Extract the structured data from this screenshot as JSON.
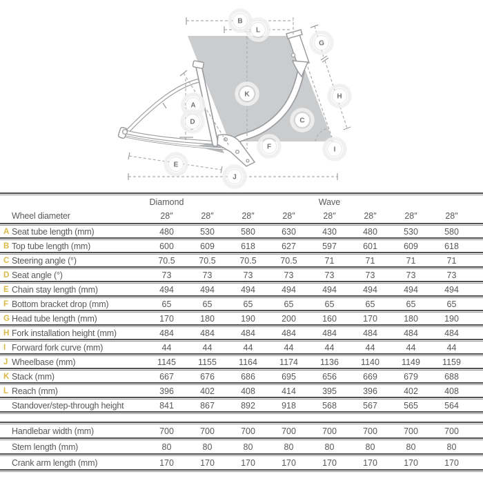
{
  "diagram": {
    "markers": [
      "A",
      "B",
      "C",
      "D",
      "E",
      "F",
      "G",
      "H",
      "I",
      "J",
      "K",
      "L"
    ]
  },
  "table": {
    "group_header": [
      "Diamond",
      "",
      "",
      "",
      "Wave",
      "",
      "",
      ""
    ],
    "wheel_row": {
      "letter": "",
      "label": "Wheel diameter",
      "values": [
        "28″",
        "28″",
        "28″",
        "28″",
        "28″",
        "28″",
        "28″",
        "28″"
      ]
    },
    "geometry_rows": [
      {
        "letter": "A",
        "label": "Seat tube length (mm)",
        "values": [
          "480",
          "530",
          "580",
          "630",
          "430",
          "480",
          "530",
          "580"
        ]
      },
      {
        "letter": "B",
        "label": "Top tube length (mm)",
        "values": [
          "600",
          "609",
          "618",
          "627",
          "597",
          "601",
          "609",
          "618"
        ]
      },
      {
        "letter": "C",
        "label": "Steering angle (°)",
        "values": [
          "70.5",
          "70.5",
          "70.5",
          "70.5",
          "71",
          "71",
          "71",
          "71"
        ]
      },
      {
        "letter": "D",
        "label": "Seat angle (°)",
        "values": [
          "73",
          "73",
          "73",
          "73",
          "73",
          "73",
          "73",
          "73"
        ]
      },
      {
        "letter": "E",
        "label": "Chain stay length (mm)",
        "values": [
          "494",
          "494",
          "494",
          "494",
          "494",
          "494",
          "494",
          "494"
        ]
      },
      {
        "letter": "F",
        "label": "Bottom bracket drop (mm)",
        "values": [
          "65",
          "65",
          "65",
          "65",
          "65",
          "65",
          "65",
          "65"
        ]
      },
      {
        "letter": "G",
        "label": "Head tube length (mm)",
        "values": [
          "170",
          "180",
          "190",
          "200",
          "160",
          "170",
          "180",
          "190"
        ]
      },
      {
        "letter": "H",
        "label": "Fork installation height (mm)",
        "values": [
          "484",
          "484",
          "484",
          "484",
          "484",
          "484",
          "484",
          "484"
        ]
      },
      {
        "letter": "I",
        "label": "Forward fork curve (mm)",
        "values": [
          "44",
          "44",
          "44",
          "44",
          "44",
          "44",
          "44",
          "44"
        ]
      },
      {
        "letter": "J",
        "label": "Wheelbase (mm)",
        "values": [
          "1145",
          "1155",
          "1164",
          "1174",
          "1136",
          "1140",
          "1149",
          "1159"
        ]
      },
      {
        "letter": "K",
        "label": "Stack (mm)",
        "values": [
          "667",
          "676",
          "686",
          "695",
          "656",
          "669",
          "679",
          "688"
        ]
      },
      {
        "letter": "L",
        "label": "Reach (mm)",
        "values": [
          "396",
          "402",
          "408",
          "414",
          "395",
          "396",
          "402",
          "408"
        ]
      },
      {
        "letter": "",
        "label": "Standover/step-through height",
        "values": [
          "841",
          "867",
          "892",
          "918",
          "568",
          "567",
          "565",
          "564"
        ]
      }
    ],
    "component_rows": [
      {
        "letter": "",
        "label": "Handlebar width (mm)",
        "values": [
          "700",
          "700",
          "700",
          "700",
          "700",
          "700",
          "700",
          "700"
        ]
      },
      {
        "letter": "",
        "label": "Stem length (mm)",
        "values": [
          "80",
          "80",
          "80",
          "80",
          "80",
          "80",
          "80",
          "80"
        ]
      },
      {
        "letter": "",
        "label": "Crank arm length (mm)",
        "values": [
          "170",
          "170",
          "170",
          "170",
          "170",
          "170",
          "170",
          "170"
        ]
      }
    ]
  },
  "colors": {
    "letter_accent": "#d9b845",
    "table_text": "#57585a",
    "shade_fill": "#cbccce",
    "line_gray": "#9b9da0"
  }
}
